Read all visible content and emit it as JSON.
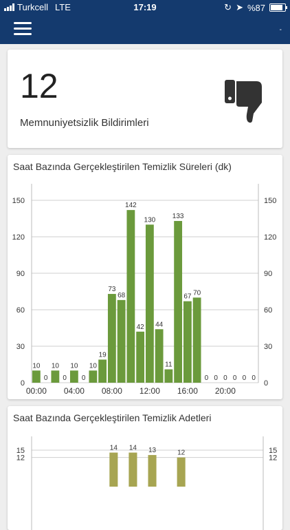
{
  "status_bar": {
    "carrier": "Turkcell",
    "network": "LTE",
    "time": "17:19",
    "battery": "%87"
  },
  "kpi": {
    "value": "12",
    "label": "Memnuniyetsizlik Bildirimleri",
    "icon": "thumbs-down-icon"
  },
  "colors": {
    "nav": "#143a6e",
    "series1": "#6b9a3c",
    "series2": "#a7a552"
  },
  "charts": [
    {
      "title": "Saat Bazında Gerçekleştirilen Temizlik Süreleri (dk)",
      "chart_data": {
        "type": "bar",
        "title": "Saat Bazında Gerçekleştirilen Temizlik Süreleri (dk)",
        "x_tick_labels": [
          "00:00",
          "04:00",
          "08:00",
          "12:00",
          "16:00",
          "20:00"
        ],
        "x_tick_positions": [
          0,
          4,
          8,
          12,
          16,
          20
        ],
        "categories": [
          "0",
          "1",
          "2",
          "3",
          "4",
          "5",
          "6",
          "7",
          "8",
          "9",
          "10",
          "11",
          "12",
          "13",
          "14",
          "15",
          "16",
          "17",
          "18",
          "19",
          "20",
          "21",
          "22",
          "23"
        ],
        "values": [
          10,
          0,
          10,
          0,
          10,
          0,
          10,
          19,
          73,
          68,
          142,
          42,
          130,
          44,
          11,
          133,
          67,
          70,
          0,
          0,
          0,
          0,
          0,
          0
        ],
        "ylim": [
          0,
          150
        ],
        "y_ticks": [
          0,
          30,
          60,
          90,
          120,
          150
        ],
        "y_tick_labels": [
          "0",
          "30",
          "60",
          "90",
          "120",
          "150"
        ],
        "grid": true,
        "color": "#6b9a3c"
      }
    },
    {
      "title": "Saat Bazında Gerçekleştirilen Temizlik Adetleri",
      "chart_data": {
        "type": "bar",
        "title": "Saat Bazında Gerçekleştirilen Temizlik Adetleri",
        "categories": [
          "0",
          "1",
          "2",
          "3",
          "4",
          "5",
          "6",
          "7",
          "8",
          "9",
          "10",
          "11",
          "12",
          "13",
          "14",
          "15",
          "16",
          "17",
          "18",
          "19",
          "20",
          "21",
          "22",
          "23"
        ],
        "values": [
          null,
          null,
          null,
          null,
          null,
          null,
          null,
          null,
          14,
          null,
          14,
          null,
          13,
          null,
          null,
          12,
          null,
          null,
          null,
          null,
          null,
          null,
          null,
          null
        ],
        "ylim": [
          0,
          15
        ],
        "y_ticks": [
          12,
          15
        ],
        "y_tick_labels": [
          "12",
          "15"
        ],
        "grid": true,
        "color": "#a7a552"
      }
    }
  ]
}
